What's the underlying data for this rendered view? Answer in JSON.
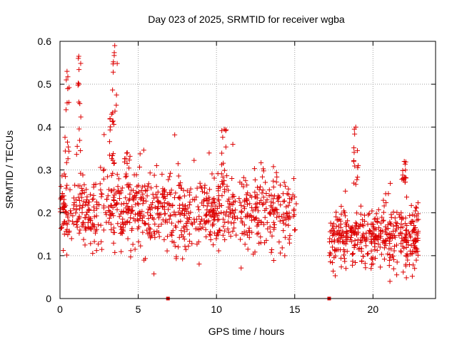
{
  "chart_data": {
    "type": "scatter",
    "title": "Day 023 of 2025, SRMTID for receiver wgba",
    "xlabel": "GPS time / hours",
    "ylabel": "SRMTID / TECUs",
    "xlim": [
      0,
      24
    ],
    "ylim": [
      0,
      0.6
    ],
    "x_ticks": [
      0,
      5,
      10,
      15,
      20
    ],
    "y_ticks": [
      0,
      0.1,
      0.2,
      0.3,
      0.4,
      0.5,
      0.6
    ],
    "grid": true,
    "marker": "plus",
    "color": "#dd0000",
    "series": [
      {
        "name": "SRMTID",
        "segments": [
          {
            "x0": 0.0,
            "x1": 15.1,
            "level": 0.2,
            "spread": 0.06,
            "n": 900
          },
          {
            "x0": 17.2,
            "x1": 22.9,
            "level": 0.14,
            "spread": 0.05,
            "n": 420
          }
        ],
        "peaks": [
          {
            "x": 0.45,
            "y": 0.53
          },
          {
            "x": 1.2,
            "y": 0.565
          },
          {
            "x": 3.5,
            "y": 0.59
          },
          {
            "x": 3.3,
            "y": 0.43
          },
          {
            "x": 4.3,
            "y": 0.34
          },
          {
            "x": 10.5,
            "y": 0.395
          },
          {
            "x": 18.9,
            "y": 0.4
          },
          {
            "x": 22.0,
            "y": 0.32
          }
        ],
        "zero_points": [
          {
            "x": 6.9,
            "y": 0.0
          },
          {
            "x": 17.2,
            "y": 0.0
          }
        ]
      }
    ]
  }
}
